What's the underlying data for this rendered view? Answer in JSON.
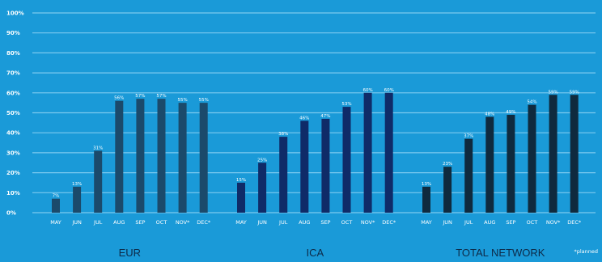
{
  "chart_data": {
    "type": "bar",
    "ylim": [
      0,
      100
    ],
    "yticks": [
      "0%",
      "10%",
      "20%",
      "30%",
      "40%",
      "50%",
      "60%",
      "70%",
      "80%",
      "90%",
      "100%"
    ],
    "grid": true,
    "colors": {
      "background": "#1a9ad8",
      "grid": "#7cc9ef",
      "label": "#0d2a48"
    },
    "footnote": "*planned",
    "groups": [
      {
        "name": "EUR",
        "color": "#1b4a6b",
        "categories": [
          "MAY",
          "JUN",
          "JUL",
          "AUG",
          "SEP",
          "OCT",
          "NOV*",
          "DEC*"
        ],
        "values": [
          7,
          13,
          31,
          56,
          57,
          57,
          55,
          55
        ],
        "value_labels": [
          "7%",
          "13%",
          "31%",
          "56%",
          "57%",
          "57%",
          "55%",
          "55%"
        ]
      },
      {
        "name": "ICA",
        "color": "#0f2b68",
        "categories": [
          "MAY",
          "JUN",
          "JUL",
          "AUG",
          "SEP",
          "OCT",
          "NOV*",
          "DEC*"
        ],
        "values": [
          15,
          25,
          38,
          46,
          47,
          53,
          60,
          60
        ],
        "value_labels": [
          "15%",
          "25%",
          "38%",
          "46%",
          "47%",
          "53%",
          "60%",
          "60%"
        ]
      },
      {
        "name": "TOTAL NETWORK",
        "color": "#0f2a3e",
        "categories": [
          "MAY",
          "JUN",
          "JUL",
          "AUG",
          "SEP",
          "OCT",
          "NOV*",
          "DEC*"
        ],
        "values": [
          13,
          23,
          37,
          48,
          49,
          54,
          59,
          59
        ],
        "value_labels": [
          "13%",
          "23%",
          "37%",
          "48%",
          "49%",
          "54%",
          "59%",
          "59%"
        ]
      }
    ]
  }
}
